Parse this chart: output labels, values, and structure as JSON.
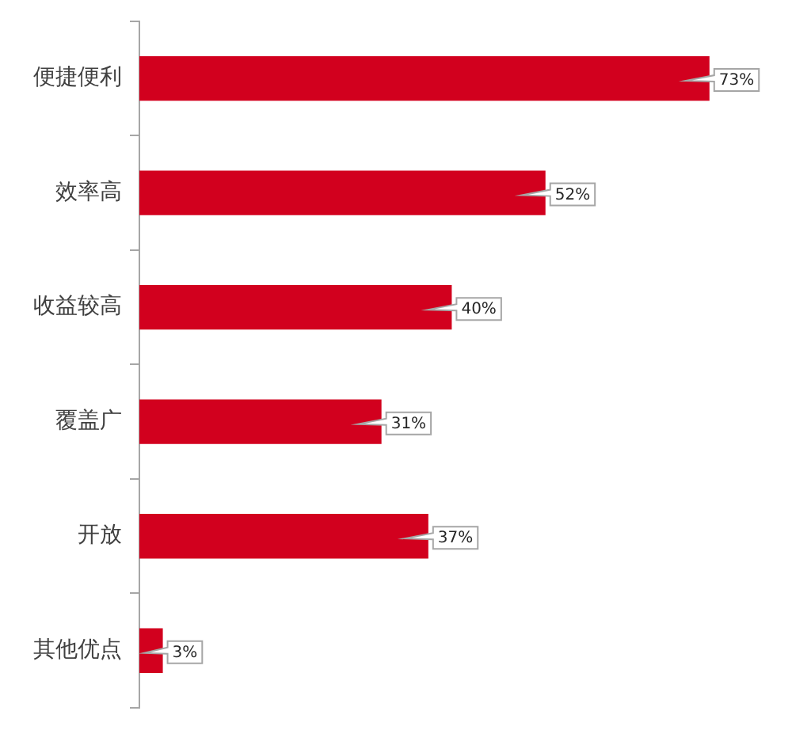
{
  "chart_data": {
    "type": "bar",
    "orientation": "horizontal",
    "categories": [
      "便捷便利",
      "效率高",
      "收益较高",
      "覆盖广",
      "开放",
      "其他优点"
    ],
    "values": [
      73,
      52,
      40,
      31,
      37,
      3
    ],
    "value_labels": [
      "73%",
      "52%",
      "40%",
      "31%",
      "37%",
      "3%"
    ],
    "color": "#d2001e"
  }
}
